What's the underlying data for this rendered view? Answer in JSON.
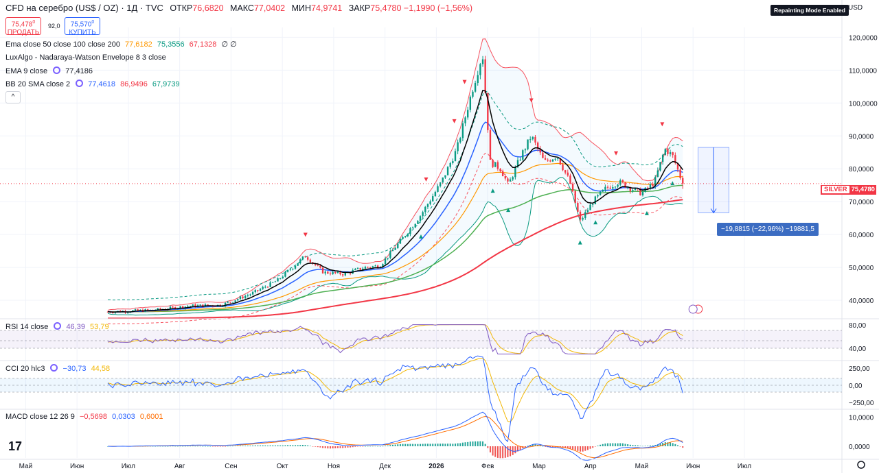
{
  "header": {
    "symbol": "CFD на серебро (US$ / OZ) · 1Д · TVC",
    "open_label": "ОТКР",
    "open": "76,6820",
    "high_label": "МАКС",
    "high": "77,0402",
    "low_label": "МИН",
    "low": "74,9741",
    "close_label": "ЗАКР",
    "close": "75,4780",
    "change": "−1,1990 (−1,56%)"
  },
  "trade": {
    "sell_price": "75,478",
    "sell_price_sup": "0",
    "sell_label": "ПРОДАТЬ",
    "spread": "92,0",
    "buy_price": "75,570",
    "buy_price_sup": "0",
    "buy_label": "КУПИТЬ"
  },
  "legends": {
    "ema_ribbon": {
      "name": "Ema close 50 close 100 close 200",
      "v1": "77,6182",
      "v2": "75,3556",
      "v3": "67,1328",
      "v4": "∅ ∅"
    },
    "luxalgo": {
      "name": "LuxAlgo - Nadaraya-Watson Envelope 8 3 close"
    },
    "ema9": {
      "name": "EMA 9 close",
      "value": "77,4186"
    },
    "bb": {
      "name": "BB 20 SMA close 2",
      "v1": "77,4618",
      "v2": "86,9496",
      "v3": "67,9739"
    },
    "rsi": {
      "name": "RSI 14 close",
      "v1": "46,39",
      "v2": "53,79"
    },
    "cci": {
      "name": "CCI 20 hlc3",
      "v1": "−30,73",
      "v2": "44,58"
    },
    "macd": {
      "name": "MACD close 12 26 9",
      "v1": "−0,5698",
      "v2": "0,0303",
      "v3": "0,6001"
    }
  },
  "toolbar": {
    "collapse_label": "^",
    "repainting_badge": "Repainting Mode Enabled",
    "currency": "USD"
  },
  "price_tag": {
    "symbol": "SILVER",
    "value": "75,4780"
  },
  "measure": {
    "label": "−19,8815 (−22,96%) −19881,5"
  },
  "logo": {
    "text": "17"
  },
  "colors": {
    "up": "#089981",
    "down": "#f23645",
    "ema9": "#000000",
    "bb_basis": "#2962ff",
    "ema50": "#ff9800",
    "ema100": "#4caf50",
    "ema200": "#f23645",
    "envelope": "#f7525f",
    "rsi": "#7e57c2",
    "cci": "#2962ff",
    "macd": "#2962ff",
    "signal": "#ff6d00"
  },
  "chart_data": {
    "type": "candlestick",
    "title": "",
    "y_ticks": [
      "120,0000",
      "110,0000",
      "100,0000",
      "90,0000",
      "80,0000",
      "70,0000",
      "60,0000",
      "50,0000",
      "40,0000"
    ],
    "y_tick_values": [
      120,
      110,
      100,
      90,
      80,
      70,
      60,
      50,
      40
    ],
    "ylim": [
      35,
      123
    ],
    "x_labels": [
      "Май",
      "Июн",
      "Июл",
      "Авг",
      "Сен",
      "Окт",
      "Ноя",
      "Дек",
      "2026",
      "Фев",
      "Мар",
      "Апр",
      "Май",
      "Июн",
      "Июл"
    ],
    "x_label_months": [
      1,
      2,
      3,
      4,
      5,
      6,
      7,
      8,
      9,
      10,
      11,
      12,
      13,
      14,
      15
    ],
    "x_range_months": [
      0.5,
      16.9
    ],
    "data_range_months": [
      2.6,
      13.8
    ],
    "close_path": [
      [
        2.6,
        36.5
      ],
      [
        3.5,
        37.0
      ],
      [
        4.2,
        38.3
      ],
      [
        4.8,
        38.5
      ],
      [
        5.4,
        42.0
      ],
      [
        5.9,
        46.0
      ],
      [
        6.45,
        53.5
      ],
      [
        6.8,
        48.5
      ],
      [
        7.2,
        48.0
      ],
      [
        7.6,
        50.0
      ],
      [
        7.9,
        50.5
      ],
      [
        8.3,
        58.0
      ],
      [
        8.7,
        66.0
      ],
      [
        9.1,
        76.0
      ],
      [
        9.4,
        86.0
      ],
      [
        9.7,
        104.0
      ],
      [
        9.9,
        115.0
      ],
      [
        10.05,
        82.0
      ],
      [
        10.25,
        80.0
      ],
      [
        10.4,
        75.0
      ],
      [
        10.65,
        84.0
      ],
      [
        10.85,
        90.0
      ],
      [
        11.1,
        82.0
      ],
      [
        11.35,
        84.0
      ],
      [
        11.6,
        76.0
      ],
      [
        11.8,
        64.0
      ],
      [
        12.05,
        70.0
      ],
      [
        12.3,
        74.0
      ],
      [
        12.55,
        76.0
      ],
      [
        12.8,
        74.0
      ],
      [
        13.0,
        72.5
      ],
      [
        13.25,
        76.0
      ],
      [
        13.45,
        86.0
      ],
      [
        13.6,
        84.0
      ],
      [
        13.8,
        75.48
      ]
    ],
    "indicator_levels": {
      "rsi": [
        "80,00",
        "40,00"
      ],
      "cci": [
        "250,00",
        "0,00",
        "−250,00"
      ],
      "macd": [
        "10,0000",
        "0,0000"
      ]
    }
  }
}
